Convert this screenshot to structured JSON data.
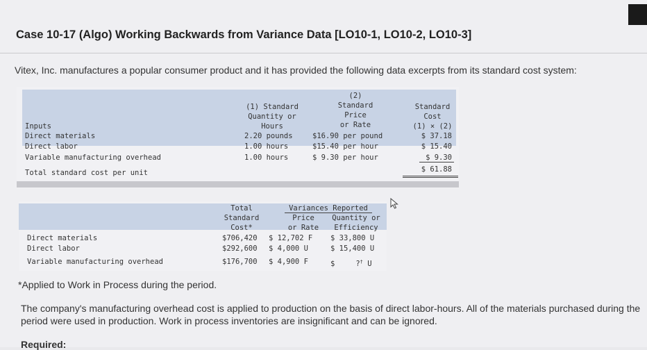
{
  "title": "Case 10-17 (Algo) Working Backwards from Variance Data [LO10-1, LO10-2, LO10-3]",
  "intro": "Vitex, Inc. manufactures a popular consumer product and it has provided the following data excerpts from its standard cost system:",
  "table1": {
    "headers": {
      "inputs": "Inputs",
      "quantity": [
        "(1) Standard",
        "Quantity or",
        "Hours"
      ],
      "price": [
        "(2)",
        "Standard",
        "Price",
        "or Rate"
      ],
      "cost": [
        "Standard",
        "Cost",
        "(1) × (2)"
      ]
    },
    "rows": [
      {
        "label": "Direct materials",
        "quantity": "2.20 pounds",
        "price": "$16.90 per pound",
        "cost": "$ 37.18"
      },
      {
        "label": "Direct labor",
        "quantity": "1.00 hours",
        "price": "$15.40 per hour",
        "cost": "$ 15.40"
      },
      {
        "label": "Variable manufacturing overhead",
        "quantity": "1.00 hours",
        "price": "$ 9.30 per hour",
        "cost": "$  9.30"
      }
    ],
    "total": {
      "label": "Total standard cost per unit",
      "cost": "$ 61.88"
    }
  },
  "table2": {
    "headers": {
      "total": [
        "Total",
        "Standard",
        "Cost*"
      ],
      "variances": "Variances Reported",
      "price": [
        "Price",
        "or Rate"
      ],
      "quantity": [
        "Quantity or",
        "Efficiency"
      ]
    },
    "rows": [
      {
        "label": "Direct materials",
        "total": "$706,420",
        "price": "$ 12,702 F",
        "quantity": "$ 33,800 U"
      },
      {
        "label": "Direct labor",
        "total": "$292,600",
        "price": "$  4,000 U",
        "quantity": "$ 15,400 U"
      },
      {
        "label": "Variable manufacturing overhead",
        "total": "$176,700",
        "price": "$  4,900 F",
        "quantity_dollar": "$",
        "quantity_unknown": "?",
        "quantity_mark": "†",
        "quantity_suffix": "U"
      }
    ]
  },
  "footnote": "*Applied to Work in Process during the period.",
  "paragraph": "The company's manufacturing overhead cost is applied to production on the basis of direct labor-hours. All of the materials purchased during the period were used in production. Work in process inventories are insignificant and can be ignored.",
  "required": "Required:"
}
